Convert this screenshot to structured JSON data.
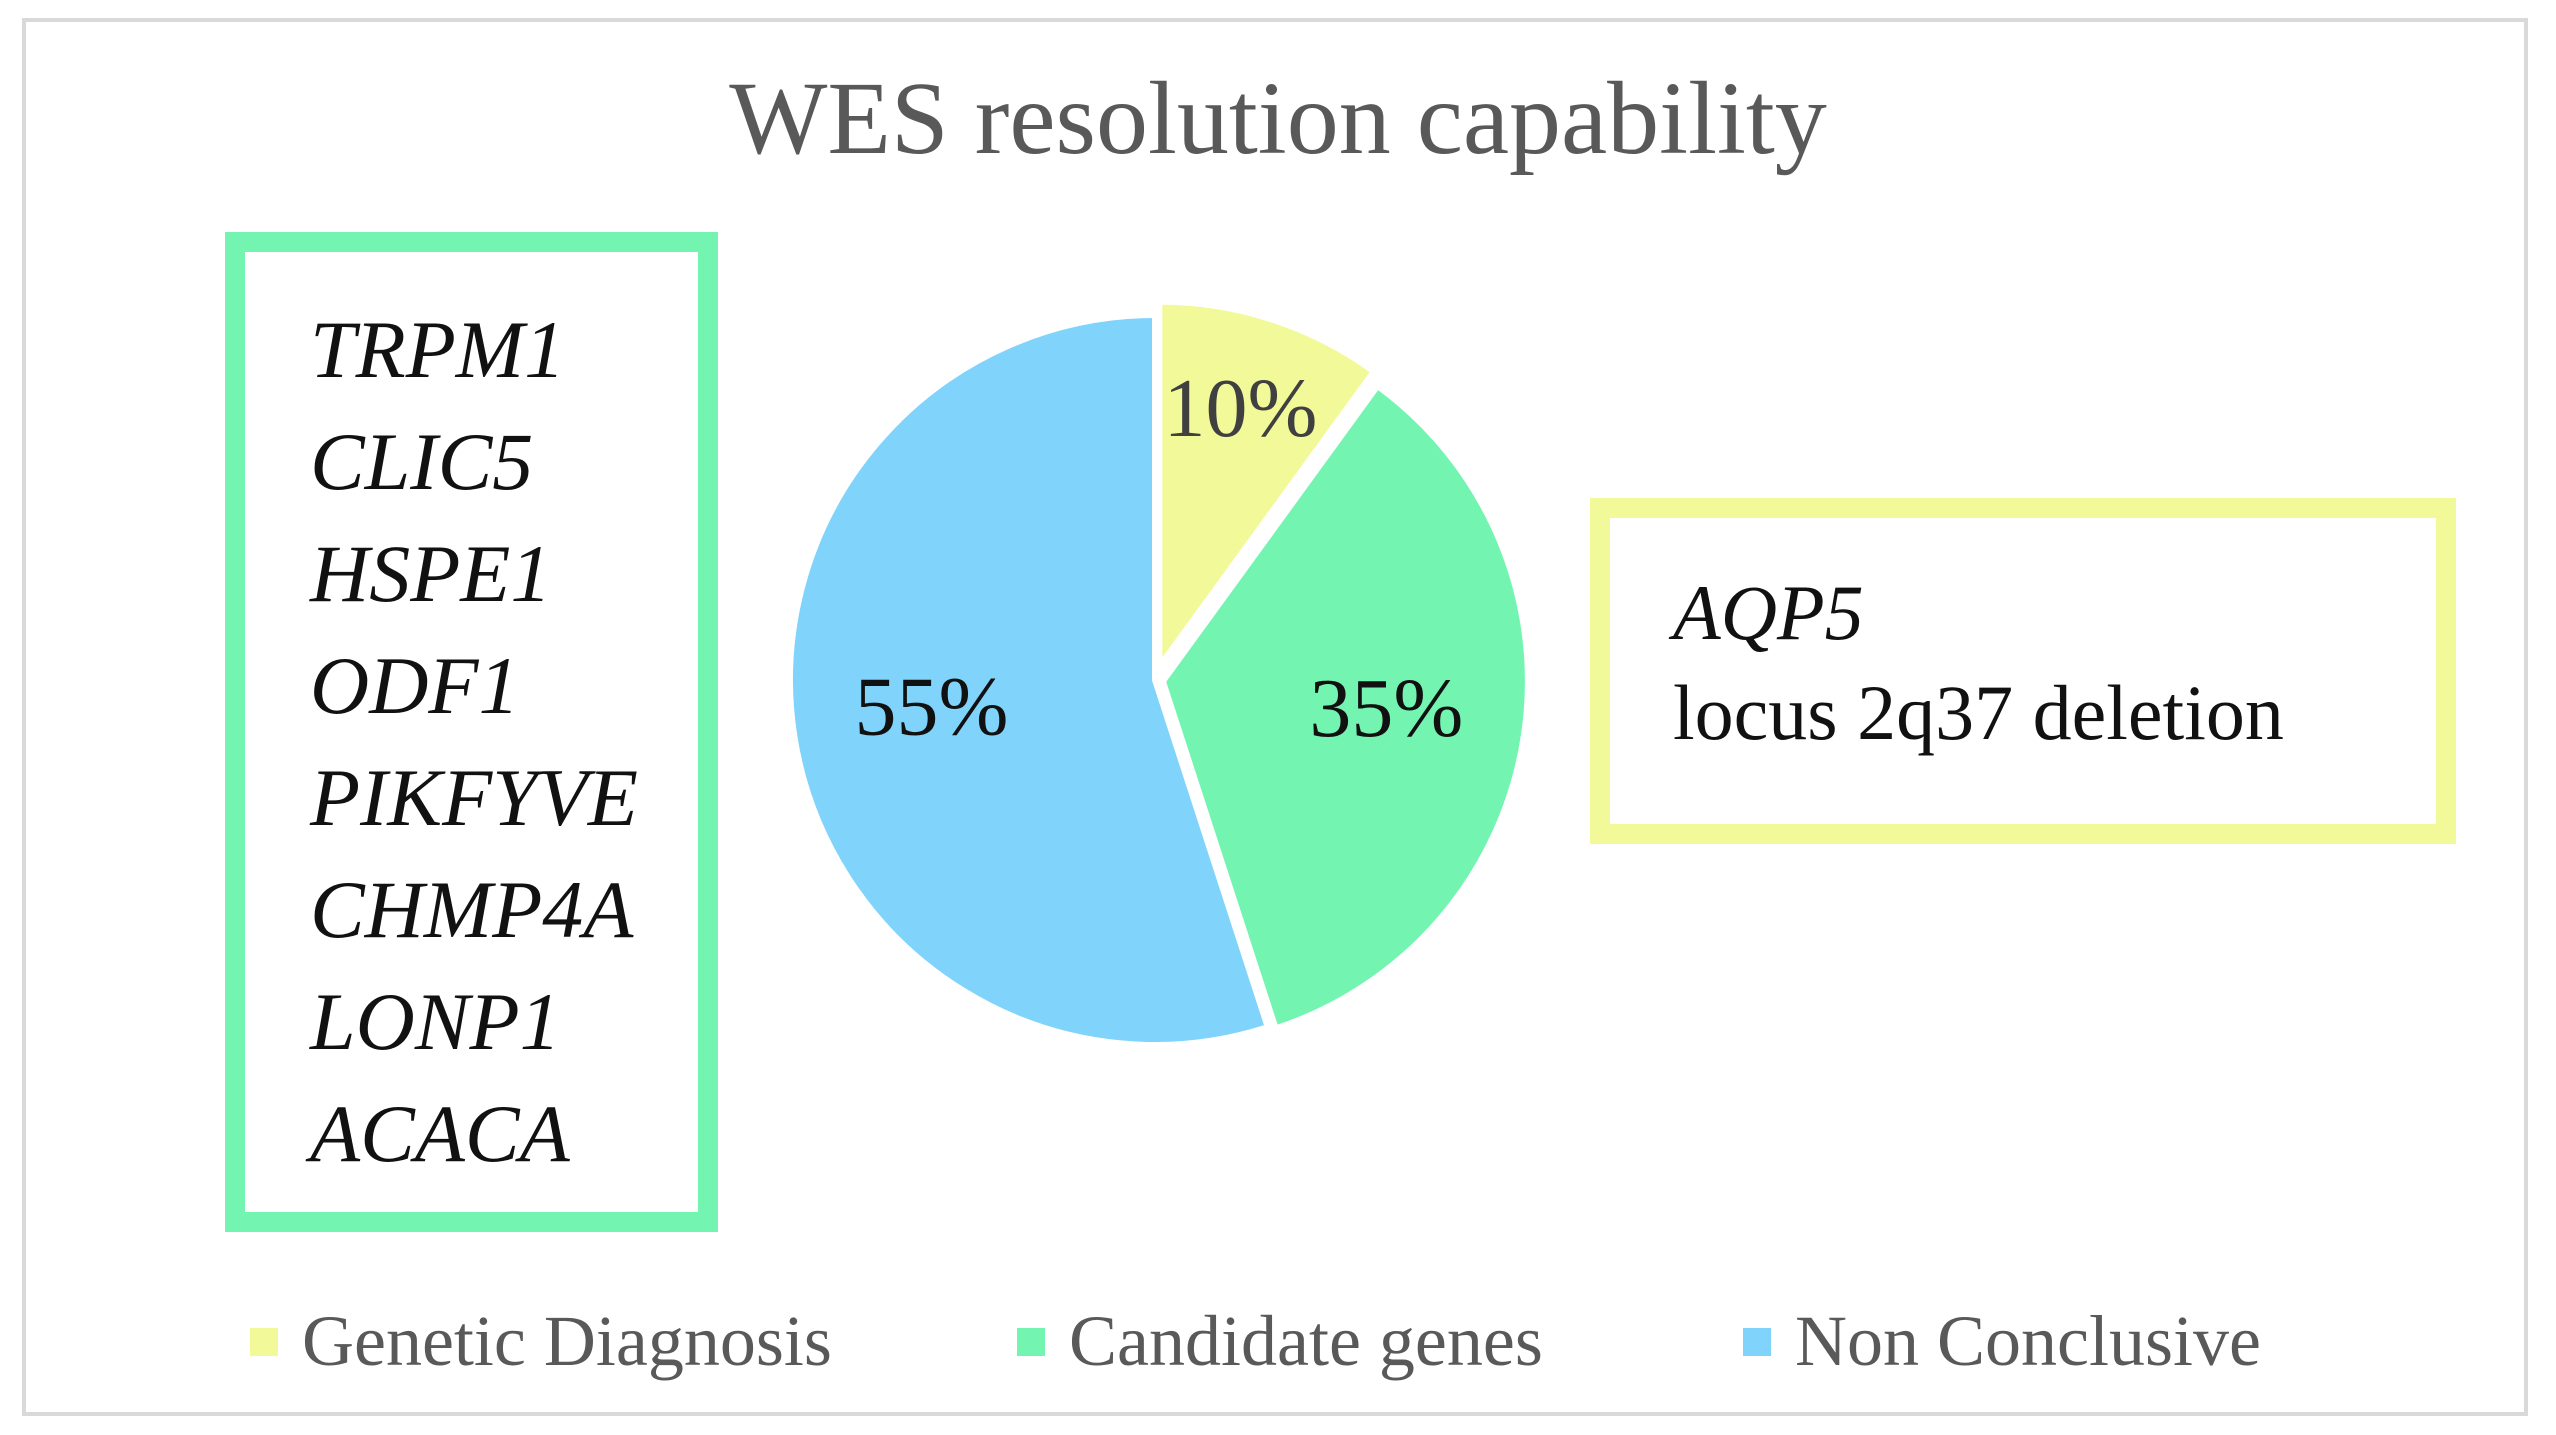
{
  "chart_data": {
    "type": "pie",
    "title": "WES resolution capability",
    "categories": [
      "Genetic Diagnosis",
      "Candidate genes",
      "Non Conclusive"
    ],
    "values": [
      10,
      35,
      55
    ],
    "value_labels": [
      "10%",
      "35%",
      "55%"
    ],
    "colors": [
      "#f2f999",
      "#73f5b1",
      "#80d3fa"
    ],
    "label_colors": [
      "#404040",
      "#111111",
      "#111111"
    ],
    "legend_position": "bottom",
    "annotations": {
      "candidate_genes_box": {
        "items": [
          "TRPM1",
          "CLIC5",
          "HSPE1",
          "ODF1",
          "PIKFYVE",
          "CHMP4A",
          "LONP1",
          "ACACA"
        ]
      },
      "genetic_diagnosis_box": {
        "line1": "AQP5",
        "line2": "locus 2q37 deletion"
      }
    }
  }
}
